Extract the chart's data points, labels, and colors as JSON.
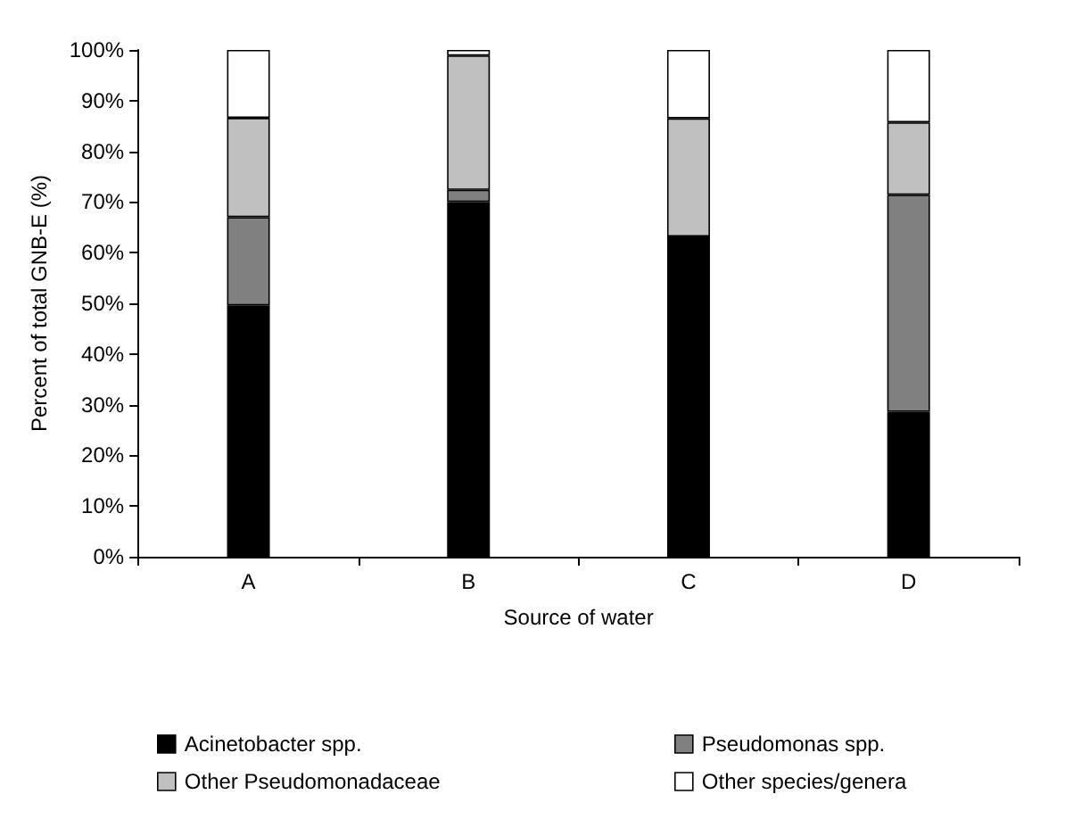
{
  "chart_data": {
    "type": "bar",
    "stacked": true,
    "xlabel": "Source of water",
    "ylabel": "Percent of total GNB-E (%)",
    "categories": [
      "A",
      "B",
      "C",
      "D"
    ],
    "series": [
      {
        "name": "Acinetobacter spp.",
        "color": "#000000",
        "values": [
          49.6,
          70.0,
          63.2,
          28.6
        ]
      },
      {
        "name": "Pseudomonas spp.",
        "color": "#808080",
        "values": [
          17.4,
          2.4,
          0,
          42.8
        ]
      },
      {
        "name": "Other Pseudomonadaceae",
        "color": "#c0c0c0",
        "values": [
          19.6,
          26.5,
          23.3,
          14.3
        ]
      },
      {
        "name": "Other species/genera",
        "color": "#ffffff",
        "values": [
          13.4,
          1.1,
          13.5,
          14.3
        ]
      }
    ],
    "ylim": [
      0,
      100
    ],
    "yticks": [
      {
        "value": 0,
        "label": "0%"
      },
      {
        "value": 10,
        "label": "10%"
      },
      {
        "value": 20,
        "label": "20%"
      },
      {
        "value": 30,
        "label": "30%"
      },
      {
        "value": 40,
        "label": "40%"
      },
      {
        "value": 50,
        "label": "50%"
      },
      {
        "value": 60,
        "label": "60%"
      },
      {
        "value": 70,
        "label": "70%"
      },
      {
        "value": 80,
        "label": "80%"
      },
      {
        "value": 90,
        "label": "90%"
      },
      {
        "value": 100,
        "label": "100%"
      }
    ],
    "grid": false,
    "legend": "bottom"
  }
}
